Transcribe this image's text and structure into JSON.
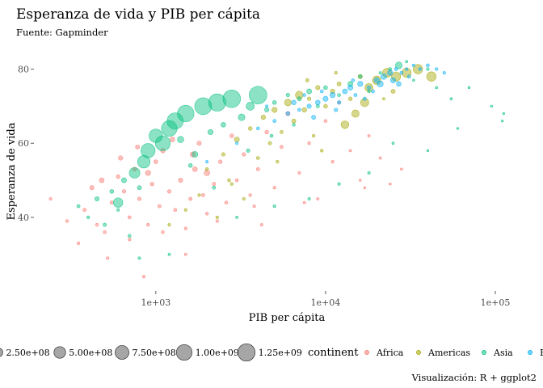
{
  "chart_data": {
    "type": "scatter",
    "title": "Esperanza de vida y PIB per cápita",
    "subtitle": "Fuente: Gapminder",
    "caption": "Visualización: R + ggplot2",
    "xlabel": "PIB per cápita",
    "ylabel": "Esperanza de vida",
    "x_scale": "log10",
    "xlim": [
      200,
      150000
    ],
    "ylim": [
      21,
      86
    ],
    "x_ticks": [
      1000,
      10000,
      100000
    ],
    "x_tick_labels": [
      "1e+03",
      "1e+04",
      "1e+05"
    ],
    "y_ticks": [
      40,
      60,
      80
    ],
    "y_tick_labels": [
      "40",
      "60",
      "80"
    ],
    "grid": false,
    "legend_position": "bottom",
    "size_legend": {
      "breaks": [
        250000000,
        500000000,
        750000000,
        1000000000,
        1250000000
      ],
      "labels": [
        "2.50e+08",
        "5.00e+08",
        "7.50e+08",
        "1.00e+09",
        "1.25e+09"
      ]
    },
    "color_legend": {
      "title": "continent",
      "labels": [
        "Africa",
        "Americas",
        "Asia",
        "Europe"
      ],
      "colors": [
        "#F8766D",
        "#A3A500",
        "#00BF7D",
        "#00B0F6"
      ]
    },
    "series": [
      {
        "name": "Africa",
        "color": "#F8766D",
        "points": [
          [
            240,
            45,
            4000000
          ],
          [
            300,
            39,
            6000000
          ],
          [
            350,
            33,
            5000000
          ],
          [
            380,
            42,
            10000000
          ],
          [
            420,
            48,
            30000000
          ],
          [
            480,
            50,
            45000000
          ],
          [
            500,
            36,
            8000000
          ],
          [
            550,
            44,
            12000000
          ],
          [
            600,
            51,
            20000000
          ],
          [
            650,
            47,
            15000000
          ],
          [
            700,
            40,
            9000000
          ],
          [
            750,
            53,
            25000000
          ],
          [
            800,
            45,
            14000000
          ],
          [
            850,
            24,
            3000000
          ],
          [
            900,
            38,
            7000000
          ],
          [
            950,
            49,
            18000000
          ],
          [
            1000,
            55,
            22000000
          ],
          [
            1050,
            43,
            11000000
          ],
          [
            1100,
            58,
            35000000
          ],
          [
            1200,
            47,
            16000000
          ],
          [
            1300,
            42,
            9000000
          ],
          [
            1400,
            50,
            30000000
          ],
          [
            1500,
            37,
            5000000
          ],
          [
            1600,
            45,
            12000000
          ],
          [
            1700,
            53,
            40000000
          ],
          [
            1800,
            60,
            28000000
          ],
          [
            1900,
            46,
            10000000
          ],
          [
            2000,
            41,
            6000000
          ],
          [
            2200,
            49,
            13000000
          ],
          [
            2400,
            55,
            17000000
          ],
          [
            2600,
            44,
            8000000
          ],
          [
            2800,
            62,
            20000000
          ],
          [
            3000,
            50,
            9000000
          ],
          [
            3300,
            57,
            14000000
          ],
          [
            3600,
            46,
            5000000
          ],
          [
            4000,
            53,
            11000000
          ],
          [
            4500,
            63,
            18000000
          ],
          [
            5000,
            48,
            4000000
          ],
          [
            5500,
            59,
            9000000
          ],
          [
            6000,
            68,
            30000000
          ],
          [
            7000,
            52,
            3000000
          ],
          [
            8000,
            60,
            6000000
          ],
          [
            9000,
            45,
            2000000
          ],
          [
            10000,
            66,
            7000000
          ],
          [
            11000,
            55,
            3000000
          ],
          [
            12000,
            71,
            10000000
          ],
          [
            14000,
            58,
            2000000
          ],
          [
            16000,
            50,
            1000000
          ],
          [
            18000,
            62,
            2500000
          ],
          [
            21000,
            56,
            1500000
          ],
          [
            24000,
            49,
            1000000
          ],
          [
            28000,
            53,
            800000
          ],
          [
            17000,
            48,
            900000
          ],
          [
            7500,
            44,
            1500000
          ],
          [
            450,
            38,
            7000000
          ],
          [
            620,
            56,
            35000000
          ],
          [
            1250,
            61,
            45000000
          ],
          [
            2300,
            39,
            4000000
          ],
          [
            3800,
            43,
            3000000
          ],
          [
            900,
            52,
            60000000
          ],
          [
            1500,
            30,
            2000000
          ],
          [
            520,
            29,
            3000000
          ],
          [
            700,
            34,
            4000000
          ],
          [
            1100,
            36,
            6000000
          ],
          [
            2000,
            52,
            70000000
          ],
          [
            1650,
            57,
            55000000
          ],
          [
            780,
            59,
            25000000
          ],
          [
            4200,
            38,
            2500000
          ]
        ]
      },
      {
        "name": "Americas",
        "color": "#A3A500",
        "points": [
          [
            1200,
            38,
            3000000
          ],
          [
            1500,
            42,
            4000000
          ],
          [
            1800,
            46,
            5000000
          ],
          [
            2000,
            53,
            8000000
          ],
          [
            2300,
            40,
            3500000
          ],
          [
            2500,
            57,
            15000000
          ],
          [
            2800,
            49,
            6000000
          ],
          [
            3000,
            61,
            50000000
          ],
          [
            3300,
            45,
            4000000
          ],
          [
            3600,
            64,
            20000000
          ],
          [
            4000,
            56,
            9000000
          ],
          [
            4300,
            67,
            35000000
          ],
          [
            4700,
            60,
            12000000
          ],
          [
            5000,
            69,
            60000000
          ],
          [
            5500,
            63,
            10000000
          ],
          [
            6000,
            71,
            120000000
          ],
          [
            6500,
            66,
            25000000
          ],
          [
            7000,
            73,
            180000000
          ],
          [
            7500,
            69,
            40000000
          ],
          [
            8000,
            72,
            15000000
          ],
          [
            8500,
            62,
            5000000
          ],
          [
            9000,
            75,
            30000000
          ],
          [
            10000,
            70,
            20000000
          ],
          [
            11000,
            74,
            35000000
          ],
          [
            12000,
            76,
            25000000
          ],
          [
            14000,
            72,
            18000000
          ],
          [
            16000,
            78,
            30000000
          ],
          [
            18000,
            75,
            200000000
          ],
          [
            20000,
            77,
            230000000
          ],
          [
            23000,
            79,
            260000000
          ],
          [
            26000,
            78,
            280000000
          ],
          [
            30000,
            79,
            290000000
          ],
          [
            35000,
            80,
            300000000
          ],
          [
            42000,
            78,
            301000000
          ],
          [
            15000,
            68,
            157000000
          ],
          [
            13000,
            65,
            180000000
          ],
          [
            25000,
            74,
            25000000
          ],
          [
            9500,
            58,
            6000000
          ],
          [
            5200,
            55,
            4000000
          ],
          [
            2700,
            50,
            7000000
          ],
          [
            7800,
            77,
            11000000
          ],
          [
            11500,
            79,
            4000000
          ],
          [
            17000,
            71,
            210000000
          ],
          [
            22000,
            72,
            2000000
          ]
        ]
      },
      {
        "name": "Asia",
        "color": "#00BF7D",
        "points": [
          [
            350,
            43,
            10000000
          ],
          [
            400,
            40,
            6000000
          ],
          [
            450,
            45,
            30000000
          ],
          [
            500,
            38,
            12000000
          ],
          [
            550,
            47,
            20000000
          ],
          [
            600,
            44,
            300000000
          ],
          [
            650,
            50,
            50000000
          ],
          [
            700,
            35,
            8000000
          ],
          [
            750,
            52,
            400000000
          ],
          [
            800,
            48,
            25000000
          ],
          [
            850,
            55,
            600000000
          ],
          [
            900,
            58,
            800000000
          ],
          [
            1000,
            62,
            700000000
          ],
          [
            1100,
            60,
            900000000
          ],
          [
            1200,
            64,
            1000000000
          ],
          [
            1300,
            66,
            1100000000
          ],
          [
            1400,
            61,
            100000000
          ],
          [
            1500,
            68,
            1150000000
          ],
          [
            1700,
            57,
            80000000
          ],
          [
            1900,
            70,
            1200000000
          ],
          [
            2100,
            63,
            60000000
          ],
          [
            2300,
            71,
            1250000000
          ],
          [
            2500,
            65,
            40000000
          ],
          [
            2800,
            72,
            1300000000
          ],
          [
            3200,
            67,
            120000000
          ],
          [
            3600,
            70,
            200000000
          ],
          [
            4000,
            73,
            1320000000
          ],
          [
            4500,
            69,
            30000000
          ],
          [
            5000,
            71,
            20000000
          ],
          [
            6000,
            73,
            15000000
          ],
          [
            7000,
            72,
            25000000
          ],
          [
            8000,
            74,
            50000000
          ],
          [
            9000,
            70,
            10000000
          ],
          [
            10000,
            75,
            22000000
          ],
          [
            12000,
            73,
            8000000
          ],
          [
            14000,
            76,
            48000000
          ],
          [
            16000,
            78,
            15000000
          ],
          [
            18000,
            74,
            4000000
          ],
          [
            21000,
            79,
            2000000
          ],
          [
            24000,
            80,
            7000000
          ],
          [
            27000,
            81,
            127000000
          ],
          [
            30000,
            82,
            2000000
          ],
          [
            33000,
            77,
            1000000
          ],
          [
            40000,
            80,
            4000000
          ],
          [
            45000,
            75,
            1500000
          ],
          [
            55000,
            72,
            1000000
          ],
          [
            70000,
            75,
            800000
          ],
          [
            95000,
            70,
            500000
          ],
          [
            110000,
            66,
            300000
          ],
          [
            112000,
            68,
            200000
          ],
          [
            60000,
            64,
            600000
          ],
          [
            40000,
            58,
            400000
          ],
          [
            25000,
            60,
            1500000
          ],
          [
            18000,
            52,
            3000000
          ],
          [
            12000,
            49,
            5000000
          ],
          [
            8000,
            45,
            3000000
          ],
          [
            5000,
            43,
            4000000
          ],
          [
            3000,
            40,
            2000000
          ],
          [
            1200,
            30,
            2000000
          ],
          [
            800,
            29,
            3000000
          ],
          [
            600,
            42,
            4000000
          ],
          [
            1600,
            54,
            20000000
          ],
          [
            2200,
            48,
            10000000
          ],
          [
            3500,
            58,
            14000000
          ],
          [
            4800,
            62,
            8000000
          ],
          [
            6500,
            65,
            6000000
          ]
        ]
      },
      {
        "name": "Europe",
        "color": "#00B0F6",
        "points": [
          [
            2000,
            55,
            3000000
          ],
          [
            3000,
            60,
            5000000
          ],
          [
            4000,
            64,
            8000000
          ],
          [
            5000,
            66,
            10000000
          ],
          [
            6000,
            68,
            20000000
          ],
          [
            7000,
            69,
            9000000
          ],
          [
            8000,
            70,
            30000000
          ],
          [
            9000,
            71,
            40000000
          ],
          [
            10000,
            72,
            50000000
          ],
          [
            11000,
            73,
            60000000
          ],
          [
            12000,
            71,
            15000000
          ],
          [
            13000,
            74,
            45000000
          ],
          [
            14000,
            75,
            55000000
          ],
          [
            15000,
            73,
            10000000
          ],
          [
            16000,
            76,
            57000000
          ],
          [
            18000,
            75,
            20000000
          ],
          [
            20000,
            77,
            58000000
          ],
          [
            22000,
            78,
            78000000
          ],
          [
            24000,
            79,
            60000000
          ],
          [
            26000,
            80,
            10000000
          ],
          [
            28000,
            79,
            8000000
          ],
          [
            30000,
            80,
            5000000
          ],
          [
            33000,
            81,
            4000000
          ],
          [
            36000,
            80,
            7000000
          ],
          [
            40000,
            81,
            9000000
          ],
          [
            45000,
            80,
            4500000
          ],
          [
            50000,
            79,
            4600000
          ],
          [
            8500,
            67,
            25000000
          ],
          [
            6500,
            71,
            38000000
          ],
          [
            11500,
            69,
            16000000
          ],
          [
            17000,
            72,
            13000000
          ],
          [
            19000,
            74,
            10000000
          ],
          [
            21000,
            76,
            82000000
          ],
          [
            25000,
            77,
            61000000
          ],
          [
            27000,
            76,
            40000000
          ],
          [
            31000,
            78,
            11000000
          ],
          [
            9500,
            74,
            9000000
          ],
          [
            4500,
            70,
            2500000
          ],
          [
            7500,
            73,
            7000000
          ],
          [
            14500,
            77,
            8000000
          ]
        ]
      }
    ]
  }
}
